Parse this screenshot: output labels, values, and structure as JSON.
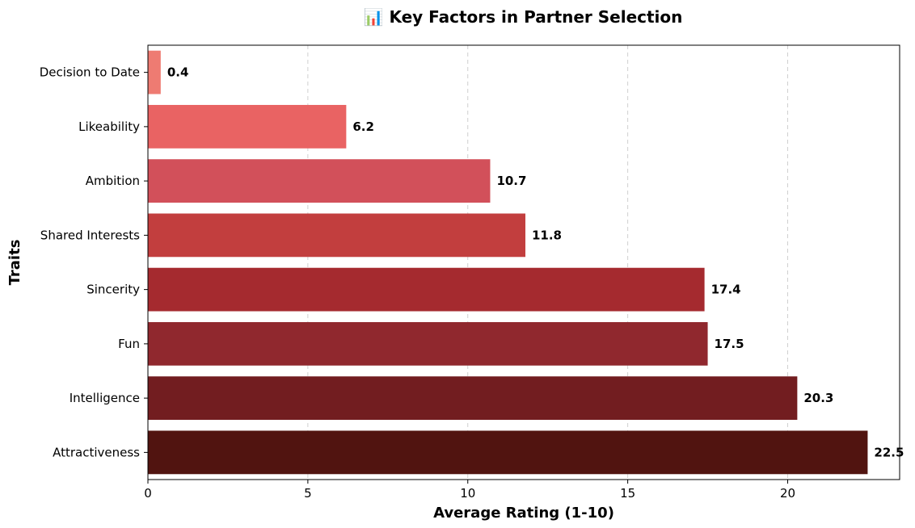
{
  "chart_data": {
    "type": "bar",
    "orientation": "horizontal",
    "title": "📊 Key Factors in Partner Selection",
    "xlabel": "Average Rating (1-10)",
    "ylabel": "Traits",
    "xlim": [
      0,
      23.5
    ],
    "xticks": [
      "0",
      "5",
      "10",
      "15",
      "20"
    ],
    "grid": "x-dashed",
    "legend": "none",
    "categories": [
      "Decision to Date",
      "Likeability",
      "Ambition",
      "Shared Interests",
      "Sincerity",
      "Fun",
      "Intelligence",
      "Attractiveness"
    ],
    "values": [
      0.4,
      6.2,
      10.7,
      11.8,
      17.4,
      17.5,
      20.3,
      22.5
    ],
    "data_labels": [
      "0.4",
      "6.2",
      "10.7",
      "11.8",
      "17.4",
      "17.5",
      "20.3",
      "22.5"
    ],
    "colors": [
      "#ee7b72",
      "#e96363",
      "#d2505a",
      "#c23e3e",
      "#a52a2f",
      "#90282e",
      "#721d20",
      "#511410"
    ]
  }
}
